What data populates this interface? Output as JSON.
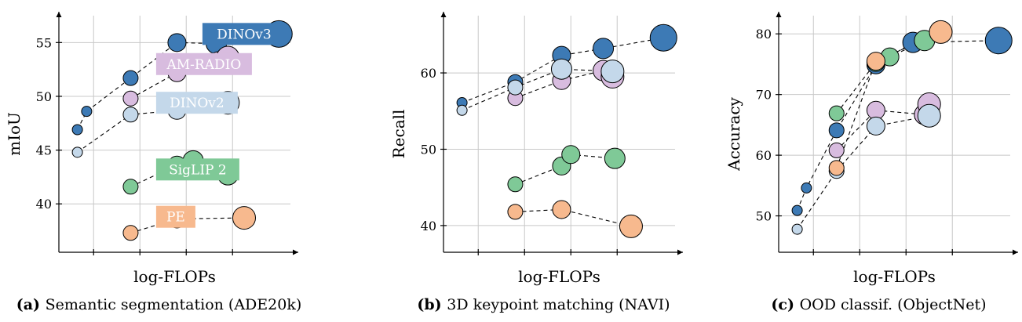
{
  "colors": {
    "DINOv3": "#3d7ab5",
    "AM-RADIO": "#d8bcdf",
    "DINOv2": "#c4d8ea",
    "SigLIP 2": "#7fc997",
    "PE": "#f7b98e"
  },
  "chart_data": [
    {
      "type": "scatter",
      "caption_label": "(a)",
      "caption_text": "Semantic segmentation (ADE20k)",
      "xlabel": "log-FLOPs",
      "ylabel": "mIoU",
      "ylim": [
        35.5,
        57.5
      ],
      "xlim": [
        0,
        10
      ],
      "yticks": [
        40,
        45,
        50,
        55
      ],
      "xticks": [
        1.5,
        3.5,
        5.5,
        7.5
      ],
      "legend": [
        {
          "name": "DINOv3",
          "x": 6.2,
          "y": 55.8
        },
        {
          "name": "AM-RADIO",
          "x": 4.2,
          "y": 53.0
        },
        {
          "name": "DINOv2",
          "x": 4.2,
          "y": 49.4
        },
        {
          "name": "SigLIP 2",
          "x": 4.2,
          "y": 43.2
        },
        {
          "name": "PE",
          "x": 4.2,
          "y": 38.8
        }
      ],
      "series": [
        {
          "name": "DINOv3",
          "points": [
            {
              "x": 0.8,
              "y": 46.9,
              "s": 1
            },
            {
              "x": 1.2,
              "y": 48.6,
              "s": 1
            },
            {
              "x": 3.1,
              "y": 51.7,
              "s": 2
            },
            {
              "x": 5.1,
              "y": 55.0,
              "s": 3
            },
            {
              "x": 6.8,
              "y": 54.9,
              "s": 4
            },
            {
              "x": 9.5,
              "y": 55.8,
              "s": 6
            }
          ]
        },
        {
          "name": "AM-RADIO",
          "points": [
            {
              "x": 3.1,
              "y": 49.8,
              "s": 2
            },
            {
              "x": 5.1,
              "y": 52.2,
              "s": 3
            },
            {
              "x": 6.9,
              "y": 53.2,
              "s": 4
            },
            {
              "x": 7.3,
              "y": 53.6,
              "s": 5
            }
          ]
        },
        {
          "name": "DINOv2",
          "points": [
            {
              "x": 0.8,
              "y": 44.8,
              "s": 1
            },
            {
              "x": 3.1,
              "y": 48.3,
              "s": 2
            },
            {
              "x": 5.1,
              "y": 48.7,
              "s": 3
            },
            {
              "x": 7.3,
              "y": 49.4,
              "s": 5
            }
          ]
        },
        {
          "name": "SigLIP 2",
          "points": [
            {
              "x": 3.1,
              "y": 41.6,
              "s": 2
            },
            {
              "x": 5.1,
              "y": 43.6,
              "s": 3
            },
            {
              "x": 5.8,
              "y": 44.0,
              "s": 4
            },
            {
              "x": 7.3,
              "y": 42.7,
              "s": 4
            }
          ]
        },
        {
          "name": "PE",
          "points": [
            {
              "x": 3.1,
              "y": 37.3,
              "s": 2
            },
            {
              "x": 5.1,
              "y": 38.6,
              "s": 3
            },
            {
              "x": 8.0,
              "y": 38.7,
              "s": 5
            }
          ]
        }
      ]
    },
    {
      "type": "scatter",
      "caption_label": "(b)",
      "caption_text": "3D keypoint matching (NAVI)",
      "xlabel": "log-FLOPs",
      "ylabel": "Recall",
      "ylim": [
        36.5,
        67.5
      ],
      "xlim": [
        0,
        10
      ],
      "yticks": [
        40,
        50,
        60
      ],
      "xticks": [
        1.5,
        3.5,
        5.5,
        7.5
      ],
      "legend": [],
      "series": [
        {
          "name": "DINOv3",
          "points": [
            {
              "x": 0.8,
              "y": 56.1,
              "s": 1
            },
            {
              "x": 3.1,
              "y": 58.8,
              "s": 2
            },
            {
              "x": 5.1,
              "y": 62.3,
              "s": 3
            },
            {
              "x": 6.9,
              "y": 63.2,
              "s": 4
            },
            {
              "x": 9.5,
              "y": 64.6,
              "s": 6
            }
          ]
        },
        {
          "name": "AM-RADIO",
          "points": [
            {
              "x": 3.1,
              "y": 56.7,
              "s": 2
            },
            {
              "x": 5.1,
              "y": 59.0,
              "s": 3
            },
            {
              "x": 6.9,
              "y": 60.3,
              "s": 4
            },
            {
              "x": 7.3,
              "y": 59.5,
              "s": 5
            }
          ]
        },
        {
          "name": "DINOv2",
          "points": [
            {
              "x": 0.8,
              "y": 55.1,
              "s": 1
            },
            {
              "x": 3.1,
              "y": 58.1,
              "s": 2
            },
            {
              "x": 5.1,
              "y": 60.5,
              "s": 4
            },
            {
              "x": 7.3,
              "y": 60.2,
              "s": 5
            }
          ]
        },
        {
          "name": "SigLIP 2",
          "points": [
            {
              "x": 3.1,
              "y": 45.4,
              "s": 2
            },
            {
              "x": 5.1,
              "y": 47.8,
              "s": 3
            },
            {
              "x": 5.5,
              "y": 49.3,
              "s": 3
            },
            {
              "x": 7.4,
              "y": 48.8,
              "s": 4
            }
          ]
        },
        {
          "name": "PE",
          "points": [
            {
              "x": 3.1,
              "y": 41.8,
              "s": 2
            },
            {
              "x": 5.1,
              "y": 42.1,
              "s": 3
            },
            {
              "x": 8.1,
              "y": 39.9,
              "s": 5
            }
          ]
        }
      ]
    },
    {
      "type": "scatter",
      "caption_label": "(c)",
      "caption_text": "OOD classif. (ObjectNet)",
      "xlabel": "log-FLOPs",
      "ylabel": "Accuracy",
      "ylim": [
        44,
        83
      ],
      "xlim": [
        0,
        10
      ],
      "yticks": [
        50,
        60,
        70,
        80
      ],
      "xticks": [
        1.5,
        3.5,
        5.5,
        7.5
      ],
      "legend": [],
      "series": [
        {
          "name": "DINOv3",
          "points": [
            {
              "x": 0.8,
              "y": 50.9,
              "s": 1
            },
            {
              "x": 1.2,
              "y": 54.6,
              "s": 1
            },
            {
              "x": 2.5,
              "y": 64.1,
              "s": 2
            },
            {
              "x": 4.2,
              "y": 74.9,
              "s": 3
            },
            {
              "x": 5.8,
              "y": 78.6,
              "s": 4
            },
            {
              "x": 9.5,
              "y": 78.9,
              "s": 6
            }
          ]
        },
        {
          "name": "SigLIP 2",
          "points": [
            {
              "x": 2.5,
              "y": 66.9,
              "s": 2
            },
            {
              "x": 4.2,
              "y": 75.3,
              "s": 3
            },
            {
              "x": 4.8,
              "y": 76.2,
              "s": 3
            },
            {
              "x": 6.3,
              "y": 78.9,
              "s": 4
            }
          ]
        },
        {
          "name": "AM-RADIO",
          "points": [
            {
              "x": 2.5,
              "y": 60.8,
              "s": 2
            },
            {
              "x": 4.2,
              "y": 67.4,
              "s": 3
            },
            {
              "x": 6.3,
              "y": 66.7,
              "s": 4
            },
            {
              "x": 6.5,
              "y": 68.4,
              "s": 5
            }
          ]
        },
        {
          "name": "DINOv2",
          "points": [
            {
              "x": 0.8,
              "y": 47.8,
              "s": 1
            },
            {
              "x": 2.5,
              "y": 57.4,
              "s": 2
            },
            {
              "x": 4.2,
              "y": 64.8,
              "s": 3
            },
            {
              "x": 6.5,
              "y": 66.5,
              "s": 5
            }
          ]
        },
        {
          "name": "PE",
          "points": [
            {
              "x": 2.5,
              "y": 57.9,
              "s": 2
            },
            {
              "x": 4.2,
              "y": 75.5,
              "s": 3
            },
            {
              "x": 7.0,
              "y": 80.3,
              "s": 5
            }
          ]
        }
      ]
    }
  ]
}
